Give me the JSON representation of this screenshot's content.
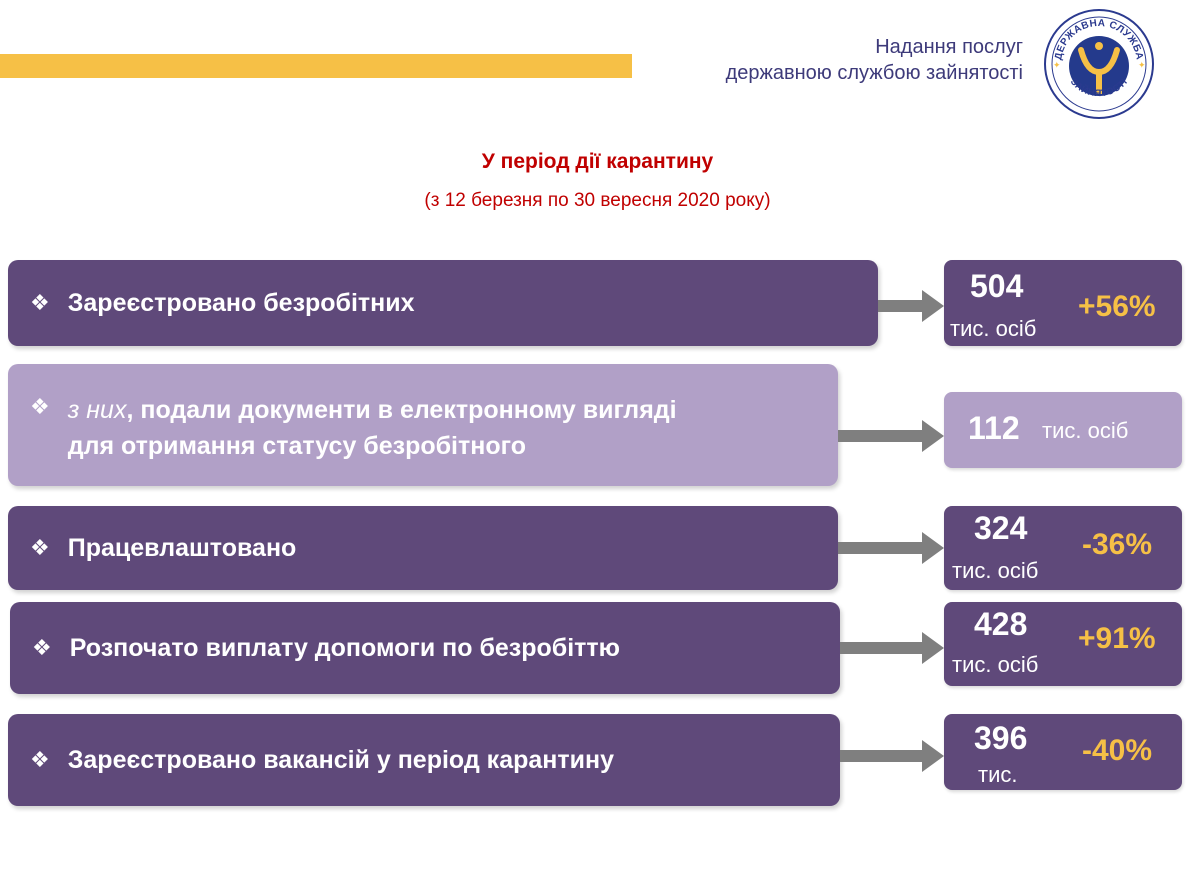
{
  "header": {
    "line1": "Надання послуг",
    "line2": "державною службою зайнятості",
    "logo_text_top": "ДЕРЖАВНА СЛУЖБА",
    "logo_text_bottom": "ЗАЙНЯТОСТІ"
  },
  "title": "У період дії карантину",
  "subtitle": "(з 12 березня по 30 вересня 2020 року)",
  "colors": {
    "accent_yellow": "#f6c046",
    "box_dark": "#5f497a",
    "box_light": "#b1a0c7",
    "title_red": "#c00000",
    "header_blue": "#3d3a7a",
    "arrow_gray": "#7f7f7f"
  },
  "rows": [
    {
      "bullet": "❖",
      "label": "Зареєстровано безробітних",
      "value": "504",
      "unit": "тис. осіб",
      "change": "+56%"
    },
    {
      "bullet": "❖",
      "label_italic": "з них",
      "label_rest": ", подали документи в електронному вигляді",
      "label_line2": "для отримання статусу безробітного",
      "value": "112",
      "unit": "тис. осіб"
    },
    {
      "bullet": "❖",
      "label": "Працевлаштовано",
      "value": "324",
      "unit": "тис. осіб",
      "change": "-36%"
    },
    {
      "bullet": "❖",
      "label": "Розпочато виплату допомоги по безробіттю",
      "value": "428",
      "unit": "тис. осіб",
      "change": "+91%"
    },
    {
      "bullet": "❖",
      "label": "Зареєстровано вакансій у період карантину",
      "value": "396",
      "unit": "тис.",
      "change": "-40%"
    }
  ]
}
